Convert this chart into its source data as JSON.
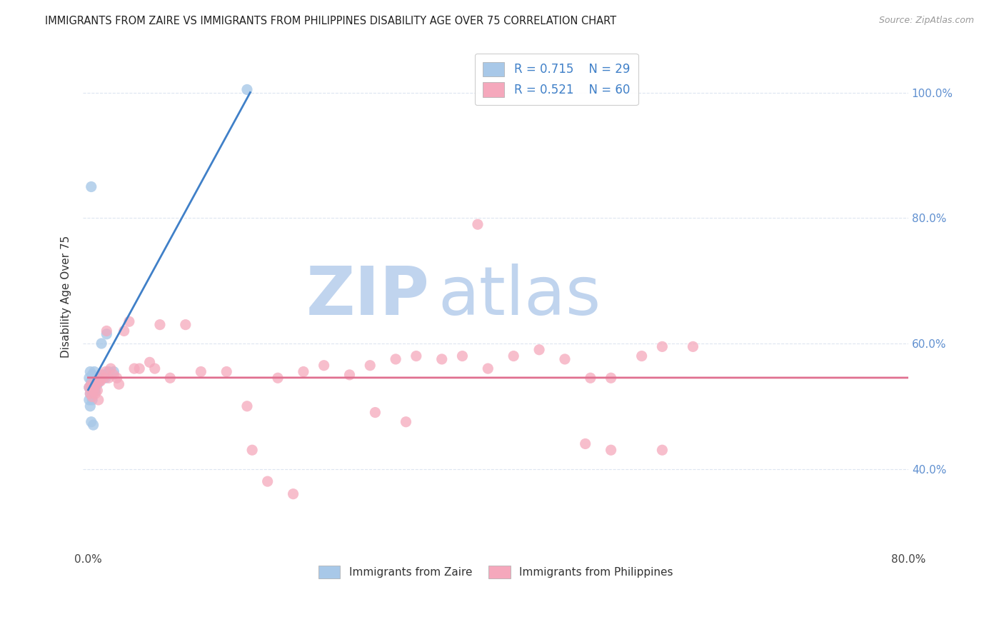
{
  "title": "IMMIGRANTS FROM ZAIRE VS IMMIGRANTS FROM PHILIPPINES DISABILITY AGE OVER 75 CORRELATION CHART",
  "source": "Source: ZipAtlas.com",
  "ylabel": "Disability Age Over 75",
  "legend_labels": [
    "Immigrants from Zaire",
    "Immigrants from Philippines"
  ],
  "r_zaire": 0.715,
  "n_zaire": 29,
  "r_phil": 0.521,
  "n_phil": 60,
  "color_zaire": "#a8c8e8",
  "color_phil": "#f5a8bc",
  "line_color_zaire": "#4080c8",
  "line_color_phil": "#e07090",
  "watermark_zip": "ZIP",
  "watermark_atlas": "atlas",
  "watermark_color_zip": "#c0d4ee",
  "watermark_color_atlas": "#c0d4ee",
  "background": "#ffffff",
  "xlim": [
    -0.005,
    0.8
  ],
  "ylim": [
    0.27,
    1.08
  ],
  "yticks": [
    0.4,
    0.6,
    0.8,
    1.0
  ],
  "ytick_labels_right": [
    "40.0%",
    "60.0%",
    "80.0%",
    "100.0%"
  ],
  "grid_color": "#dde5f0",
  "zaire_x": [
    0.001,
    0.001,
    0.001,
    0.002,
    0.002,
    0.002,
    0.003,
    0.003,
    0.003,
    0.004,
    0.004,
    0.005,
    0.005,
    0.006,
    0.006,
    0.007,
    0.008,
    0.009,
    0.01,
    0.011,
    0.012,
    0.013,
    0.015,
    0.017,
    0.018,
    0.02,
    0.025,
    0.155,
    0.003
  ],
  "zaire_y": [
    0.545,
    0.53,
    0.51,
    0.555,
    0.52,
    0.5,
    0.54,
    0.525,
    0.475,
    0.55,
    0.51,
    0.535,
    0.47,
    0.555,
    0.545,
    0.525,
    0.54,
    0.535,
    0.545,
    0.54,
    0.545,
    0.6,
    0.55,
    0.545,
    0.615,
    0.555,
    0.555,
    1.005,
    0.85
  ],
  "phil_x": [
    0.001,
    0.002,
    0.003,
    0.004,
    0.005,
    0.006,
    0.007,
    0.008,
    0.009,
    0.01,
    0.011,
    0.012,
    0.013,
    0.015,
    0.017,
    0.018,
    0.02,
    0.022,
    0.025,
    0.028,
    0.03,
    0.035,
    0.04,
    0.045,
    0.05,
    0.06,
    0.065,
    0.07,
    0.08,
    0.095,
    0.11,
    0.135,
    0.16,
    0.185,
    0.21,
    0.23,
    0.255,
    0.275,
    0.3,
    0.32,
    0.345,
    0.365,
    0.39,
    0.415,
    0.44,
    0.465,
    0.49,
    0.51,
    0.54,
    0.56,
    0.485,
    0.51,
    0.56,
    0.59,
    0.155,
    0.28,
    0.2,
    0.38,
    0.31,
    0.175
  ],
  "phil_y": [
    0.53,
    0.52,
    0.535,
    0.515,
    0.525,
    0.53,
    0.52,
    0.535,
    0.525,
    0.51,
    0.54,
    0.54,
    0.55,
    0.545,
    0.555,
    0.62,
    0.545,
    0.56,
    0.55,
    0.545,
    0.535,
    0.62,
    0.635,
    0.56,
    0.56,
    0.57,
    0.56,
    0.63,
    0.545,
    0.63,
    0.555,
    0.555,
    0.43,
    0.545,
    0.555,
    0.565,
    0.55,
    0.565,
    0.575,
    0.58,
    0.575,
    0.58,
    0.56,
    0.58,
    0.59,
    0.575,
    0.545,
    0.545,
    0.58,
    0.595,
    0.44,
    0.43,
    0.43,
    0.595,
    0.5,
    0.49,
    0.36,
    0.79,
    0.475,
    0.38
  ]
}
